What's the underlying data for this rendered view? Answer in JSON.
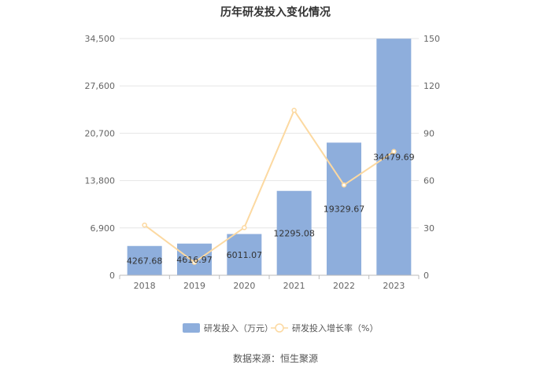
{
  "chart_data": {
    "type": "bar",
    "title": "历年研发投入变化情况",
    "categories": [
      "2018",
      "2019",
      "2020",
      "2021",
      "2022",
      "2023"
    ],
    "series": [
      {
        "name": "研发投入（万元）",
        "type": "bar",
        "axis": "left",
        "color": "#8eaedc",
        "values": [
          4267.68,
          4616.97,
          6011.07,
          12295.08,
          19329.67,
          34479.69
        ],
        "labels": [
          "4267.68",
          "4616.97",
          "6011.07",
          "12295.08",
          "19329.67",
          "34479.69"
        ]
      },
      {
        "name": "研发投入增长率（%）",
        "type": "line",
        "axis": "right",
        "color": "#fcd9a1",
        "values": [
          31.8,
          8.2,
          30.2,
          104.5,
          57.2,
          78.4
        ]
      }
    ],
    "y_left": {
      "ylim": [
        0,
        34500
      ],
      "ticks": [
        "0",
        "6,900",
        "13,800",
        "20,700",
        "27,600",
        "34,500"
      ]
    },
    "y_right": {
      "ylim": [
        0,
        150
      ],
      "ticks": [
        "0",
        "30",
        "60",
        "90",
        "120",
        "150"
      ]
    },
    "grid": true,
    "legend_position": "bottom"
  },
  "source_text": "数据来源：恒生聚源"
}
